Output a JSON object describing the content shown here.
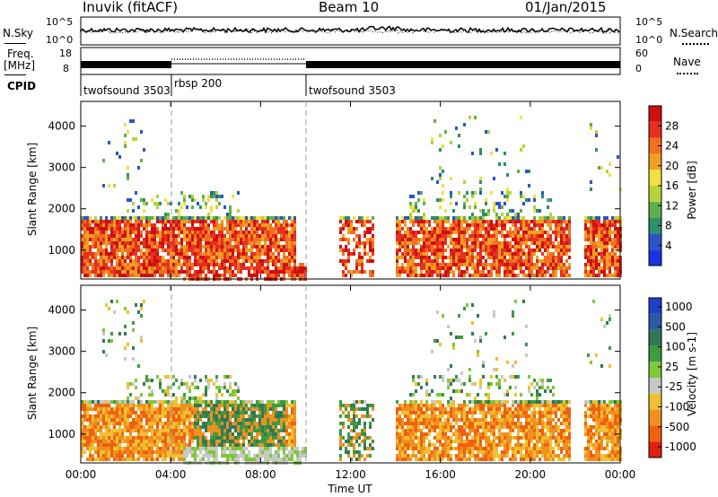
{
  "header": {
    "radar": "Inuvik (fitACF)",
    "beam": "Beam 10",
    "date": "01/Jan/2015"
  },
  "noise_panel": {
    "left_label": "N.Sky",
    "right_label": "N.Search",
    "left_ticks": [
      "10^5",
      "10^0"
    ],
    "right_ticks": [
      "10^5",
      "10^0"
    ]
  },
  "freq_panel": {
    "left_label_1": "Freq.",
    "left_label_2": "[MHz]",
    "right_label": "Nave",
    "left_ticks": [
      "18",
      "8"
    ],
    "right_ticks": [
      "60",
      "0"
    ]
  },
  "cpid_panel": {
    "label": "CPID",
    "segments": [
      "twofsound 3503",
      "rbsp 200",
      "twofsound 3503"
    ]
  },
  "colors": {
    "power_scale": [
      "#1a33e6",
      "#2a55c8",
      "#2b8f6a",
      "#5fb04a",
      "#b8d23a",
      "#f0e040",
      "#f0a020",
      "#f07020",
      "#e83020",
      "#d01010"
    ],
    "velocity_scale": [
      "#1f3fc8",
      "#2a5aa8",
      "#2f7a55",
      "#3f9a40",
      "#7fc83a",
      "#c8c8c8",
      "#f0c030",
      "#f09020",
      "#f06010",
      "#e02010"
    ]
  },
  "chart_data": [
    {
      "type": "heatmap",
      "name": "power",
      "ylabel": "Slant Range [km]",
      "ylim": [
        300,
        4600
      ],
      "y_ticks": [
        "1000",
        "2000",
        "3000",
        "4000"
      ],
      "xlim": [
        "00:00",
        "24:00"
      ],
      "colorbar": {
        "label": "Power [dB]",
        "ticks": [
          "4",
          "8",
          "12",
          "16",
          "20",
          "24",
          "28"
        ],
        "range": [
          0,
          32
        ]
      }
    },
    {
      "type": "heatmap",
      "name": "velocity",
      "ylabel": "Slant Range [km]",
      "ylim": [
        300,
        4600
      ],
      "y_ticks": [
        "1000",
        "2000",
        "3000",
        "4000"
      ],
      "xlim": [
        "00:00",
        "24:00"
      ],
      "colorbar": {
        "label": "Velocity [m s-1]",
        "ticks": [
          "1000",
          "500",
          "100",
          "25",
          "-25",
          "-100",
          "-500",
          "-1000"
        ]
      }
    }
  ],
  "x_axis": {
    "label": "Time UT",
    "ticks": [
      "00:00",
      "04:00",
      "08:00",
      "12:00",
      "16:00",
      "20:00",
      "00:00"
    ]
  }
}
